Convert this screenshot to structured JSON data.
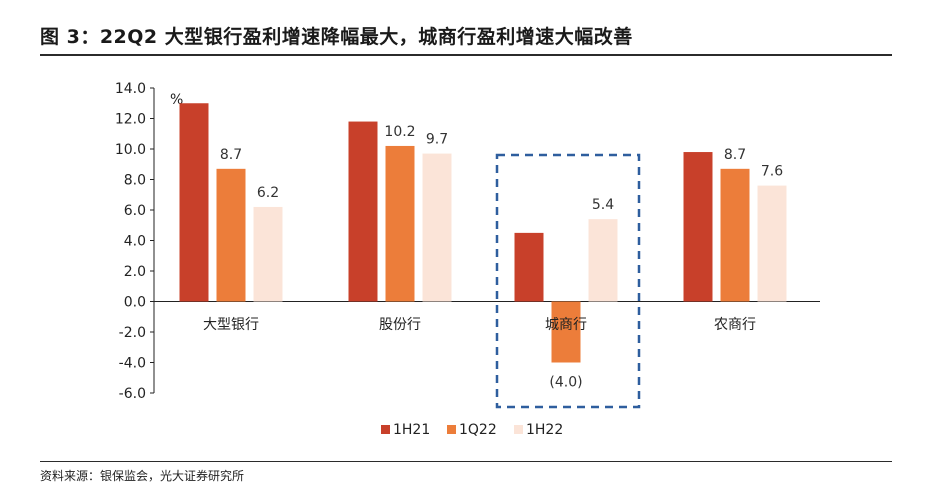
{
  "title": "图 3：22Q2 大型银行盈利增速降幅最大，城商行盈利增速大幅改善",
  "source": "资料来源：银保监会，光大证券研究所",
  "chart_data": {
    "type": "bar",
    "unit_label": "%",
    "categories": [
      "大型银行",
      "股份行",
      "城商行",
      "农商行"
    ],
    "series": [
      {
        "name": "1H21",
        "color": "#C8402A",
        "values": [
          13.0,
          11.8,
          4.5,
          9.8
        ]
      },
      {
        "name": "1Q22",
        "color": "#EC7D3A",
        "values": [
          8.7,
          10.2,
          -4.0,
          8.7
        ]
      },
      {
        "name": "1H22",
        "color": "#FBE4D8",
        "values": [
          6.2,
          9.7,
          5.4,
          7.6
        ]
      }
    ],
    "data_labels": [
      {
        "category": 0,
        "series": 1,
        "text": "8.7"
      },
      {
        "category": 0,
        "series": 2,
        "text": "6.2"
      },
      {
        "category": 1,
        "series": 1,
        "text": "10.2"
      },
      {
        "category": 1,
        "series": 2,
        "text": "9.7"
      },
      {
        "category": 2,
        "series": 1,
        "text": "(4.0)",
        "color": "#E0402F"
      },
      {
        "category": 2,
        "series": 2,
        "text": "5.4"
      },
      {
        "category": 3,
        "series": 1,
        "text": "8.7"
      },
      {
        "category": 3,
        "series": 2,
        "text": "7.6"
      }
    ],
    "y_ticks": [
      "14.0",
      "12.0",
      "10.0",
      "8.0",
      "6.0",
      "4.0",
      "2.0",
      "0.0",
      "-2.0",
      "-4.0",
      "-6.0"
    ],
    "ylim": [
      -6,
      14
    ],
    "highlight_category": 2,
    "highlight_color": "#2E5E9E",
    "legend_position": "bottom"
  }
}
